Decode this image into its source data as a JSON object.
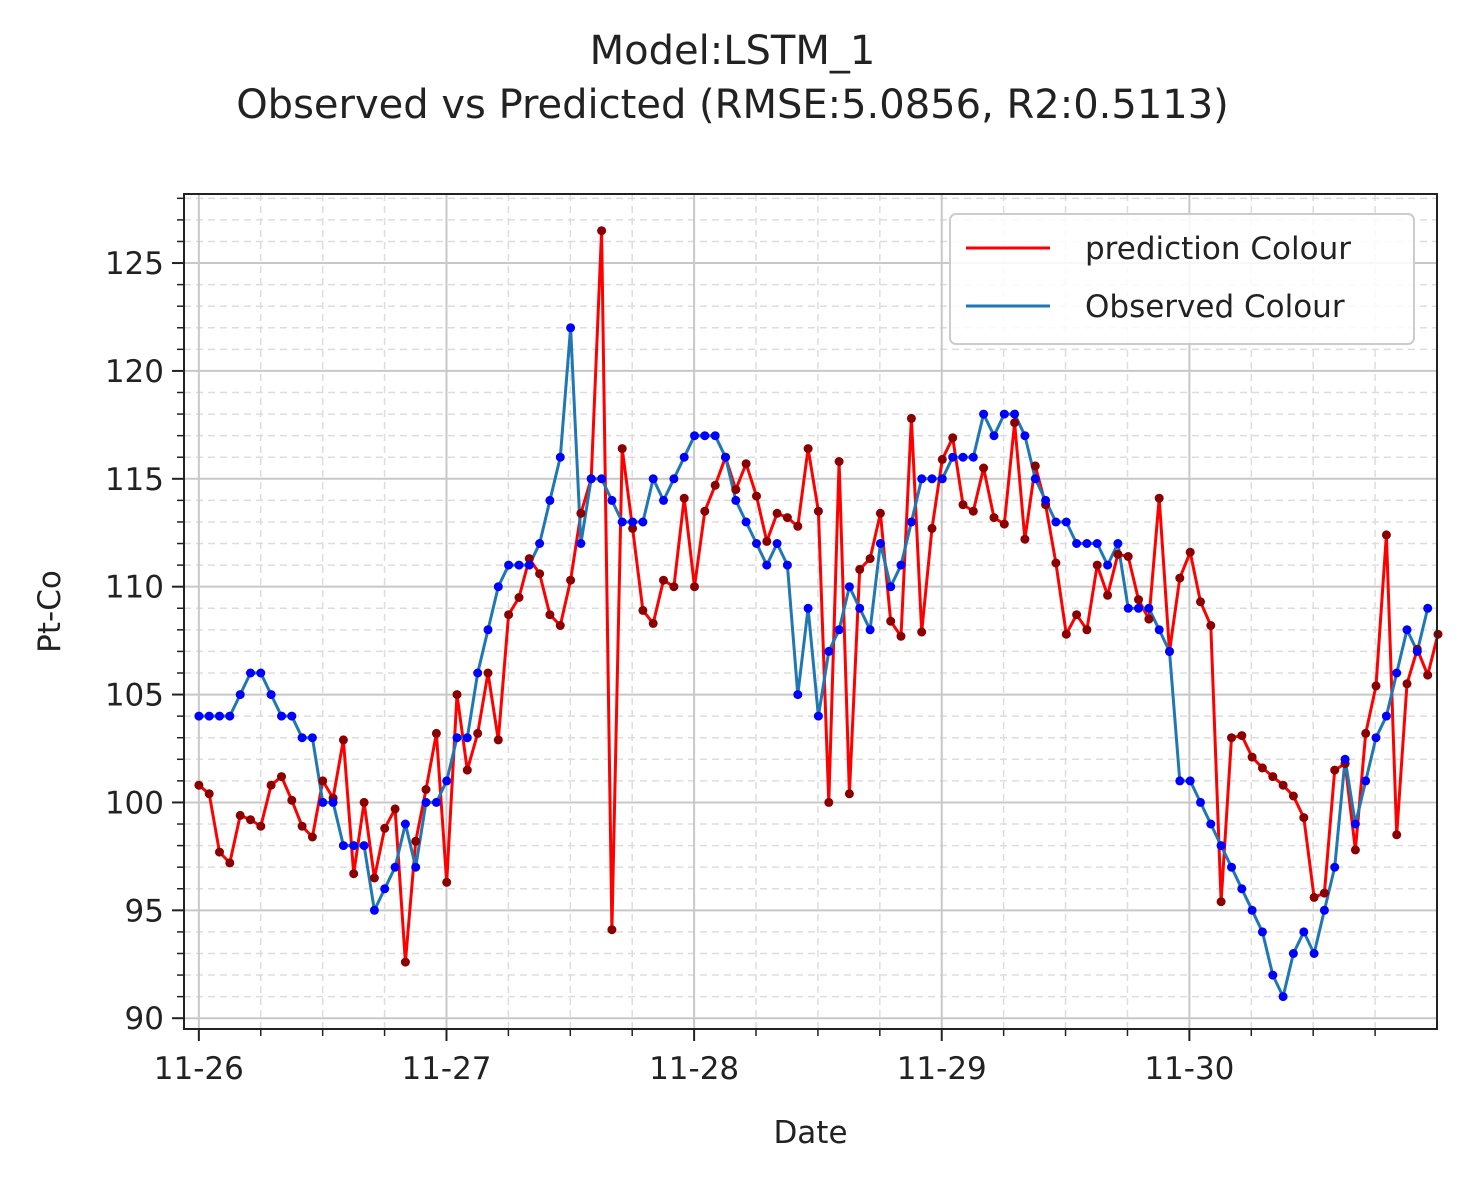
{
  "chart_data": {
    "type": "line",
    "title": "Model:LSTM_1",
    "subtitle": "Observed vs Predicted (RMSE:5.0856, R2:0.5113)",
    "xlabel": "Date",
    "ylabel": "Pt-Co",
    "x_ticks": [
      "11-26",
      "11-27",
      "11-28",
      "11-29",
      "11-30"
    ],
    "x_tick_positions": [
      0,
      1,
      2,
      3,
      4
    ],
    "x_range": [
      -0.06,
      5.0
    ],
    "x_step": 0.0417,
    "y_ticks": [
      90,
      95,
      100,
      105,
      110,
      115,
      120,
      125
    ],
    "ylim": [
      89.5,
      128.2
    ],
    "grid": true,
    "legend_position": "top-right",
    "series": [
      {
        "name": "prediction Colour",
        "color": "#ff0000",
        "marker_color": "#8b0000",
        "values": [
          100.8,
          100.4,
          97.7,
          97.2,
          99.4,
          99.2,
          98.9,
          100.8,
          101.2,
          100.1,
          98.9,
          98.4,
          101.0,
          100.2,
          102.9,
          96.7,
          100.0,
          96.5,
          98.8,
          99.7,
          92.6,
          98.2,
          100.6,
          103.2,
          96.3,
          105.0,
          101.5,
          103.2,
          106.0,
          102.9,
          108.7,
          109.5,
          111.3,
          110.6,
          108.7,
          108.2,
          110.3,
          113.4,
          115.0,
          126.5,
          94.1,
          116.4,
          112.7,
          108.9,
          108.3,
          110.3,
          110.0,
          114.1,
          110.0,
          113.5,
          114.7,
          116.0,
          114.5,
          115.7,
          114.2,
          112.1,
          113.4,
          113.2,
          112.8,
          116.4,
          113.5,
          100.0,
          115.8,
          100.4,
          110.8,
          111.3,
          113.4,
          108.4,
          107.7,
          117.8,
          107.9,
          112.7,
          115.9,
          116.9,
          113.8,
          113.5,
          115.5,
          113.2,
          112.9,
          117.6,
          112.2,
          115.6,
          113.8,
          111.1,
          107.8,
          108.7,
          108.0,
          111.0,
          109.6,
          111.5,
          111.4,
          109.4,
          108.5,
          114.1,
          107.0,
          110.4,
          111.6,
          109.3,
          108.2,
          95.4,
          103.0,
          103.1,
          102.1,
          101.6,
          101.2,
          100.8,
          100.3,
          99.3,
          95.6,
          95.8,
          101.5,
          101.8,
          97.8,
          103.2,
          105.4,
          112.4,
          98.5,
          105.5,
          107.1,
          105.9,
          107.8
        ]
      },
      {
        "name": "Observed Colour",
        "color": "#1f77b4",
        "marker_color": "#0000ff",
        "values": [
          104,
          104,
          104,
          104,
          105,
          106,
          106,
          105,
          104,
          104,
          103,
          103,
          100,
          100,
          98,
          98,
          98,
          95,
          96,
          97,
          99,
          97,
          100,
          100,
          101,
          103,
          103,
          106,
          108,
          110,
          111,
          111,
          111,
          112,
          114,
          116,
          122,
          112,
          115,
          115,
          114,
          113,
          113,
          113,
          115,
          114,
          115,
          116,
          117,
          117,
          117,
          116,
          114,
          113,
          112,
          111,
          112,
          111,
          105,
          109,
          104,
          107,
          108,
          110,
          109,
          108,
          112,
          110,
          111,
          113,
          115,
          115,
          115,
          116,
          116,
          116,
          118,
          117,
          118,
          118,
          117,
          115,
          114,
          113,
          113,
          112,
          112,
          112,
          111,
          112,
          109,
          109,
          109,
          108,
          107,
          101,
          101,
          100,
          99,
          98,
          97,
          96,
          95,
          94,
          92,
          91,
          93,
          94,
          93,
          95,
          97,
          102,
          99,
          101,
          103,
          104,
          106,
          108,
          107,
          109
        ]
      }
    ]
  }
}
